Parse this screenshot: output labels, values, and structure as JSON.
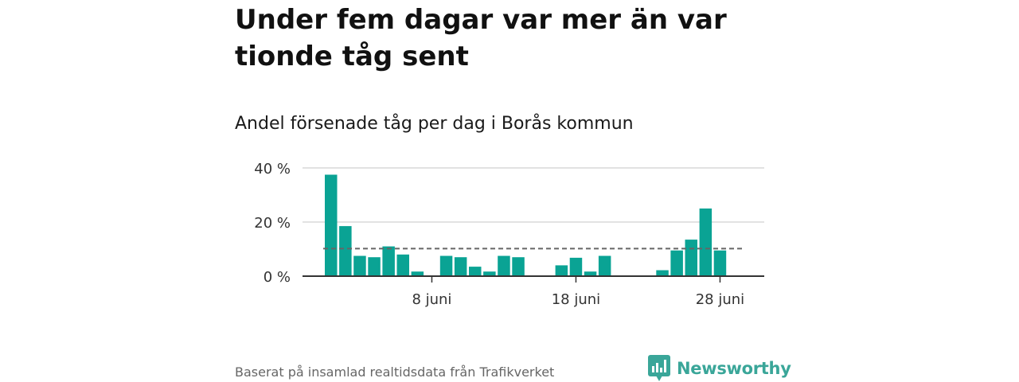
{
  "title": "Under fem dagar var mer än var tionde tåg sent",
  "subtitle": "Andel försenade tåg per dag i Borås kommun",
  "footer": "Baserat på insamlad realtidsdata från Trafikverket",
  "logo": {
    "text": "Newsworthy",
    "color": "#3aa699"
  },
  "colors": {
    "bar": "#0aa394",
    "reference_line": "#666666",
    "grid": "#d9d9d9",
    "axis": "#333333"
  },
  "chart_data": {
    "type": "bar",
    "y_unit": "%",
    "ylim": [
      0,
      40
    ],
    "y_ticks": [
      "0 %",
      "20 %",
      "40 %"
    ],
    "x_ticks": [
      {
        "day": 8,
        "label": "8 juni"
      },
      {
        "day": 18,
        "label": "18 juni"
      },
      {
        "day": 28,
        "label": "28 juni"
      }
    ],
    "days": [
      1,
      2,
      3,
      4,
      5,
      6,
      7,
      8,
      9,
      10,
      11,
      12,
      13,
      14,
      15,
      16,
      17,
      18,
      19,
      20,
      21,
      22,
      23,
      24,
      25,
      26,
      27,
      28,
      29,
      30
    ],
    "values": [
      37.5,
      18.5,
      7.5,
      7,
      11,
      8,
      1.7,
      0,
      7.5,
      7,
      3.5,
      1.7,
      7.5,
      7,
      null,
      null,
      4,
      6.8,
      1.7,
      7.5,
      null,
      null,
      null,
      2.2,
      9.5,
      13.5,
      25,
      9.5,
      null,
      null
    ],
    "reference_value": 10.2,
    "grid": true
  }
}
